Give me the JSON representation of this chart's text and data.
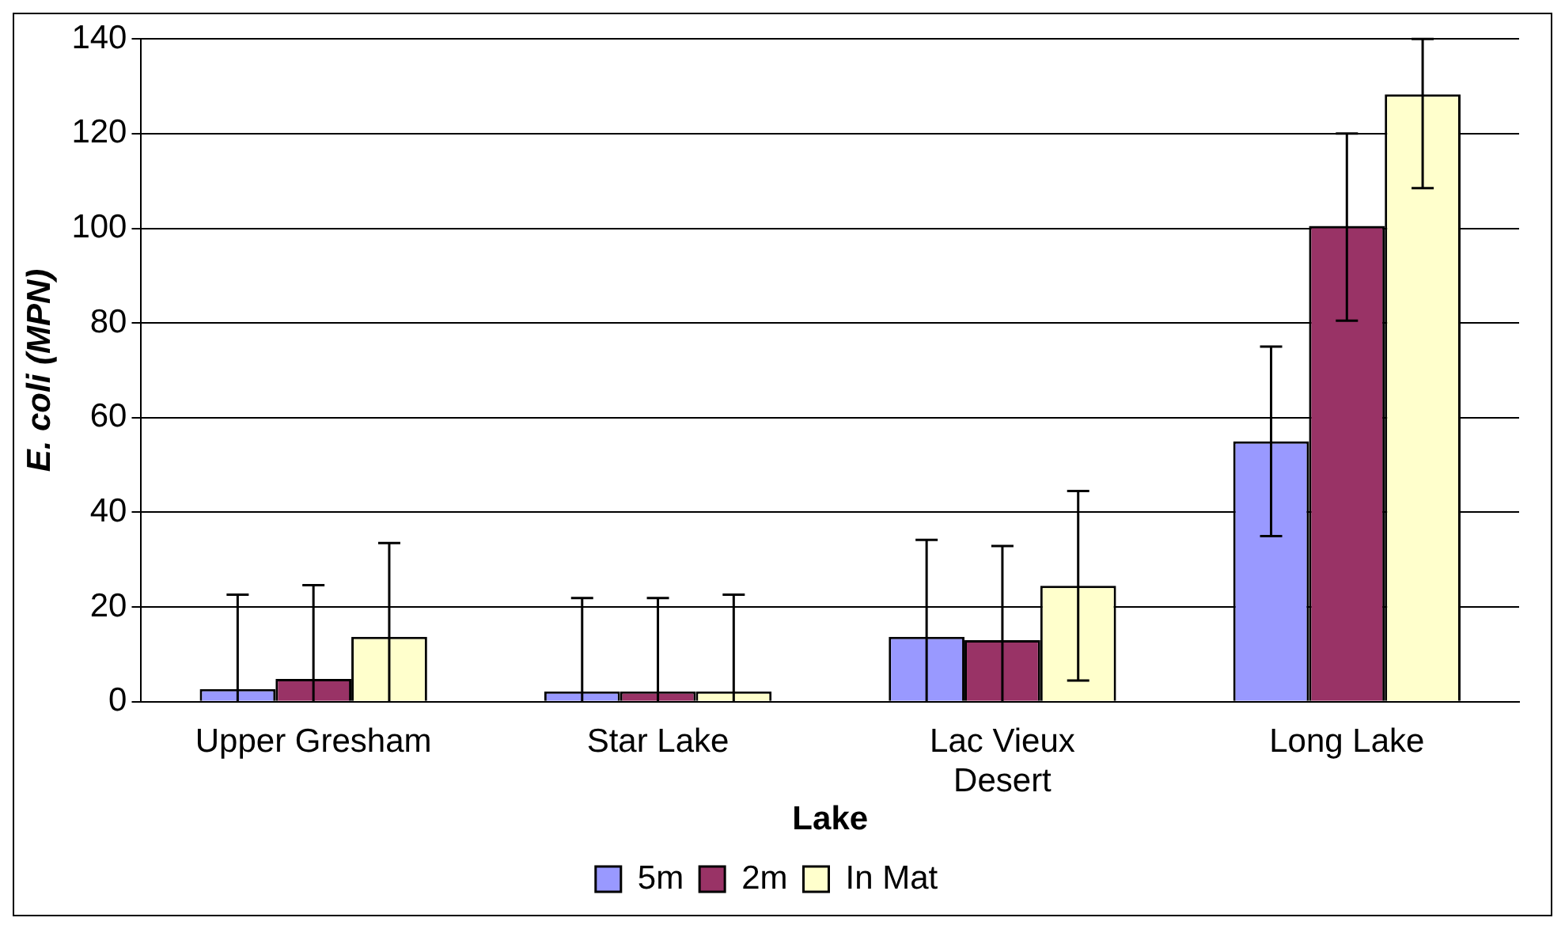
{
  "chart_data": {
    "type": "bar",
    "xlabel": "Lake",
    "ylabel": "E. coli (MPN)",
    "categories": [
      "Upper Gresham",
      "Star Lake",
      "Lac Vieux Desert",
      "Long Lake"
    ],
    "series": [
      {
        "name": "5m",
        "color": "#9999ff",
        "values": [
          2.7,
          2.2,
          13.7,
          55
        ],
        "errors": [
          [
            0,
            22.6
          ],
          [
            0,
            21.9
          ],
          [
            0,
            34.2
          ],
          [
            35,
            75
          ]
        ]
      },
      {
        "name": "2m",
        "color": "#993366",
        "values": [
          4.8,
          2.2,
          13,
          100.5
        ],
        "errors": [
          [
            0,
            24.6
          ],
          [
            0,
            21.9
          ],
          [
            0,
            32.9
          ],
          [
            80.5,
            120
          ]
        ]
      },
      {
        "name": "In Mat",
        "color": "#ffffcc",
        "values": [
          13.7,
          2.2,
          24.5,
          128.3
        ],
        "errors": [
          [
            0,
            33.5
          ],
          [
            0,
            22.6
          ],
          [
            4.5,
            44.5
          ],
          [
            108.5,
            140
          ]
        ]
      }
    ],
    "ylim": [
      0,
      140
    ],
    "yticks": [
      0,
      20,
      40,
      60,
      80,
      100,
      120,
      140
    ],
    "grid": "y",
    "legend": "bottom"
  }
}
